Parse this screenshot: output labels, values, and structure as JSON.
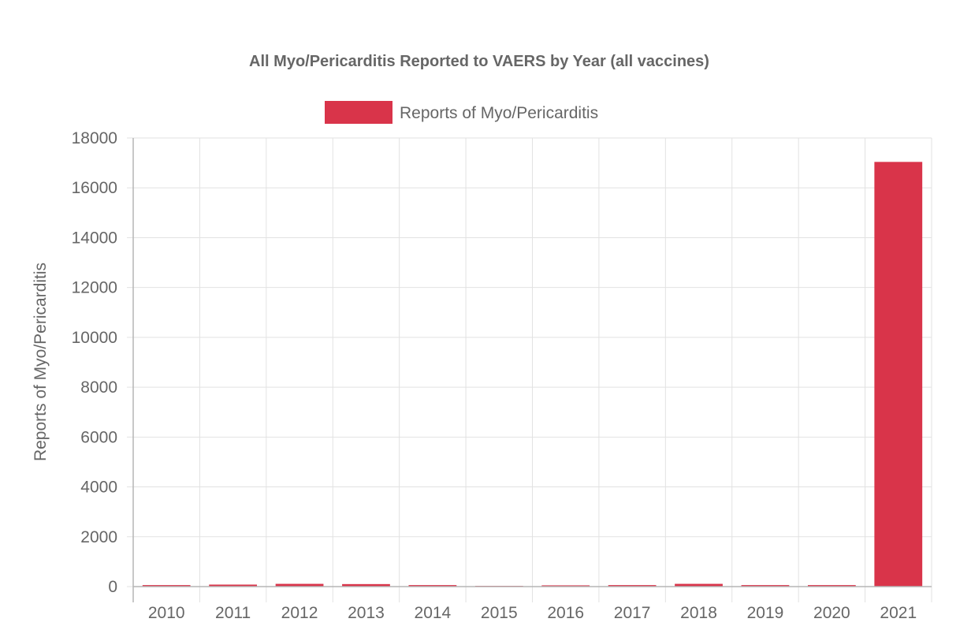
{
  "chart_data": {
    "type": "bar",
    "title": "All Myo/Pericarditis Reported to VAERS by Year (all vaccines)",
    "xlabel": "",
    "ylabel": "Reports of Myo/Pericarditis",
    "categories": [
      "2010",
      "2011",
      "2012",
      "2013",
      "2014",
      "2015",
      "2016",
      "2017",
      "2018",
      "2019",
      "2020",
      "2021"
    ],
    "series": [
      {
        "name": "Reports of Myo/Pericarditis",
        "values": [
          60,
          80,
          110,
          100,
          60,
          30,
          50,
          60,
          110,
          60,
          60,
          17040
        ],
        "color": "#d9344a"
      }
    ],
    "ylim": [
      0,
      18000
    ],
    "yticks": [
      0,
      2000,
      4000,
      6000,
      8000,
      10000,
      12000,
      14000,
      16000,
      18000
    ],
    "grid": true,
    "legend_position": "top-center"
  },
  "colors": {
    "grid": "#e2e2e2",
    "axis": "#b5b5b5",
    "text": "#666666",
    "title": "#666666"
  }
}
